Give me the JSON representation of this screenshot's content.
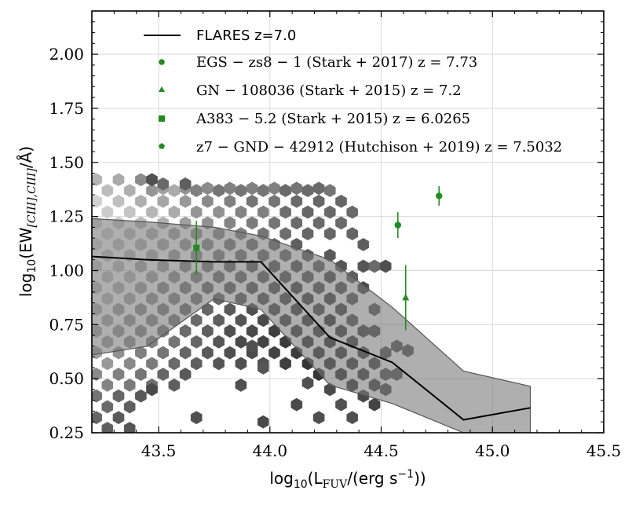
{
  "chart_data": {
    "type": "scatter",
    "title": "",
    "xlabel": "log10(LFUV/(erg s−1))",
    "ylabel": "log10(EW[CIII],CIII]/Å)",
    "xlim": [
      43.2,
      45.5
    ],
    "ylim": [
      0.25,
      2.2
    ],
    "x_ticks": [
      43.5,
      44.0,
      44.5,
      45.0,
      45.5
    ],
    "x_tick_labels": [
      "43.5",
      "44.0",
      "44.5",
      "45.0",
      "45.5"
    ],
    "y_ticks": [
      0.25,
      0.5,
      0.75,
      1.0,
      1.25,
      1.5,
      1.75,
      2.0
    ],
    "y_tick_labels": [
      "0.25",
      "0.50",
      "0.75",
      "1.00",
      "1.25",
      "1.50",
      "1.75",
      "2.00"
    ],
    "grid": true,
    "legend_position": "top-left",
    "colors": {
      "observed": "#228b22",
      "median": "#000000",
      "band_fill": "#7a7a7a",
      "band_edge": "#555555"
    },
    "median_line": {
      "name": "FLARES z=7.0",
      "x": [
        43.2,
        43.45,
        43.75,
        43.96,
        44.27,
        44.55,
        44.87,
        45.17
      ],
      "y": [
        1.065,
        1.05,
        1.04,
        1.04,
        0.69,
        0.575,
        0.31,
        0.365
      ]
    },
    "percentile_band": {
      "x": [
        43.2,
        43.45,
        43.75,
        43.96,
        44.27,
        44.55,
        44.87,
        45.17
      ],
      "upper": [
        1.24,
        1.225,
        1.2,
        1.16,
        1.05,
        0.83,
        0.535,
        0.465
      ],
      "lower": [
        0.61,
        0.65,
        0.87,
        0.82,
        0.47,
        0.385,
        0.25,
        0.25
      ]
    },
    "observations": [
      {
        "label": "EGS − zs8 − 1 (Stark + 2017) z = 7.73",
        "marker": "circle",
        "x": 44.76,
        "y": 1.345,
        "yerr": 0.045
      },
      {
        "label": "",
        "marker": "circle",
        "x": 44.575,
        "y": 1.21,
        "yerr": 0.06
      },
      {
        "label": "GN − 108036 (Stark + 2015) z = 7.2",
        "marker": "triangle",
        "x": 44.61,
        "y": 0.875,
        "yerr": 0.15
      },
      {
        "label": "A383 − 5.2 (Stark + 2015) z = 6.0265",
        "marker": "square",
        "x": 43.67,
        "y": 1.105,
        "yerr": 0.125
      },
      {
        "label": "z7 − GND − 42912 (Hutchison + 2019) z = 7.5032",
        "marker": "pentagon",
        "x": null,
        "y": null,
        "yerr": null
      }
    ],
    "hexbin": [
      [
        43.22,
        1.42,
        0.25
      ],
      [
        43.27,
        1.37,
        0.22
      ],
      [
        43.32,
        1.42,
        0.3
      ],
      [
        43.37,
        1.37,
        0.28
      ],
      [
        43.42,
        1.42,
        0.45
      ],
      [
        43.47,
        1.37,
        0.4
      ],
      [
        43.52,
        1.38,
        0.35
      ],
      [
        43.57,
        1.37,
        0.3
      ],
      [
        43.62,
        1.38,
        0.42
      ],
      [
        43.67,
        1.37,
        0.5
      ],
      [
        43.72,
        1.38,
        0.45
      ],
      [
        43.77,
        1.37,
        0.55
      ],
      [
        43.82,
        1.38,
        0.5
      ],
      [
        43.87,
        1.37,
        0.55
      ],
      [
        43.92,
        1.38,
        0.5
      ],
      [
        43.97,
        1.37,
        0.55
      ],
      [
        44.02,
        1.38,
        0.5
      ],
      [
        44.07,
        1.37,
        0.6
      ],
      [
        44.12,
        1.38,
        0.55
      ],
      [
        44.17,
        1.37,
        0.6
      ],
      [
        44.22,
        1.38,
        0.6
      ],
      [
        44.27,
        1.37,
        0.55
      ],
      [
        43.52,
        1.4,
        0.6
      ],
      [
        43.62,
        1.4,
        0.65
      ],
      [
        43.47,
        1.42,
        0.72
      ],
      [
        43.22,
        1.32,
        0.12
      ],
      [
        43.27,
        1.27,
        0.15
      ],
      [
        43.32,
        1.32,
        0.2
      ],
      [
        43.37,
        1.27,
        0.18
      ],
      [
        43.42,
        1.32,
        0.28
      ],
      [
        43.47,
        1.27,
        0.25
      ],
      [
        43.52,
        1.32,
        0.32
      ],
      [
        43.57,
        1.27,
        0.3
      ],
      [
        43.62,
        1.32,
        0.38
      ],
      [
        43.67,
        1.27,
        0.4
      ],
      [
        43.72,
        1.32,
        0.45
      ],
      [
        43.77,
        1.27,
        0.42
      ],
      [
        43.82,
        1.32,
        0.5
      ],
      [
        43.87,
        1.27,
        0.48
      ],
      [
        43.92,
        1.32,
        0.55
      ],
      [
        43.97,
        1.27,
        0.5
      ],
      [
        44.02,
        1.32,
        0.55
      ],
      [
        44.07,
        1.27,
        0.58
      ],
      [
        44.12,
        1.32,
        0.6
      ],
      [
        44.17,
        1.27,
        0.62
      ],
      [
        44.22,
        1.32,
        0.62
      ],
      [
        44.27,
        1.27,
        0.6
      ],
      [
        44.32,
        1.32,
        0.62
      ],
      [
        44.37,
        1.27,
        0.6
      ],
      [
        43.22,
        1.22,
        0.1
      ],
      [
        43.27,
        1.17,
        0.12
      ],
      [
        43.32,
        1.22,
        0.15
      ],
      [
        43.37,
        1.17,
        0.18
      ],
      [
        43.42,
        1.22,
        0.22
      ],
      [
        43.47,
        1.17,
        0.25
      ],
      [
        43.52,
        1.22,
        0.28
      ],
      [
        43.57,
        1.17,
        0.32
      ],
      [
        43.62,
        1.22,
        0.35
      ],
      [
        43.67,
        1.17,
        0.4
      ],
      [
        43.72,
        1.22,
        0.42
      ],
      [
        43.77,
        1.17,
        0.45
      ],
      [
        43.82,
        1.22,
        0.48
      ],
      [
        43.87,
        1.17,
        0.5
      ],
      [
        43.92,
        1.22,
        0.52
      ],
      [
        43.97,
        1.17,
        0.55
      ],
      [
        44.02,
        1.22,
        0.55
      ],
      [
        44.07,
        1.17,
        0.58
      ],
      [
        44.12,
        1.22,
        0.6
      ],
      [
        44.17,
        1.17,
        0.62
      ],
      [
        44.22,
        1.22,
        0.6
      ],
      [
        44.27,
        1.17,
        0.62
      ],
      [
        44.32,
        1.22,
        0.6
      ],
      [
        44.37,
        1.17,
        0.62
      ],
      [
        44.42,
        1.12,
        0.65
      ],
      [
        44.47,
        1.02,
        0.6
      ],
      [
        43.22,
        1.12,
        0.1
      ],
      [
        43.27,
        1.07,
        0.15
      ],
      [
        43.32,
        1.12,
        0.18
      ],
      [
        43.37,
        1.07,
        0.2
      ],
      [
        43.42,
        1.12,
        0.25
      ],
      [
        43.47,
        1.07,
        0.28
      ],
      [
        43.52,
        1.12,
        0.3
      ],
      [
        43.57,
        1.07,
        0.35
      ],
      [
        43.62,
        1.12,
        0.38
      ],
      [
        43.67,
        1.07,
        0.42
      ],
      [
        43.72,
        1.12,
        0.45
      ],
      [
        43.77,
        1.07,
        0.5
      ],
      [
        43.82,
        1.12,
        0.52
      ],
      [
        43.87,
        1.07,
        0.55
      ],
      [
        43.92,
        1.12,
        0.58
      ],
      [
        43.97,
        1.07,
        0.6
      ],
      [
        44.02,
        1.12,
        0.6
      ],
      [
        44.07,
        1.07,
        0.62
      ],
      [
        44.12,
        1.12,
        0.65
      ],
      [
        44.17,
        1.07,
        0.65
      ],
      [
        44.22,
        1.02,
        0.65
      ],
      [
        44.27,
        1.07,
        0.68
      ],
      [
        44.32,
        1.02,
        0.7
      ],
      [
        44.37,
        0.97,
        0.65
      ],
      [
        44.42,
        1.02,
        0.7
      ],
      [
        43.22,
        1.02,
        0.15
      ],
      [
        43.27,
        0.97,
        0.18
      ],
      [
        43.32,
        1.02,
        0.2
      ],
      [
        43.37,
        0.97,
        0.22
      ],
      [
        43.42,
        1.02,
        0.3
      ],
      [
        43.47,
        0.97,
        0.32
      ],
      [
        43.52,
        1.02,
        0.35
      ],
      [
        43.57,
        0.97,
        0.4
      ],
      [
        43.62,
        1.02,
        0.45
      ],
      [
        43.67,
        0.97,
        0.5
      ],
      [
        43.72,
        1.02,
        0.52
      ],
      [
        43.77,
        0.97,
        0.58
      ],
      [
        43.82,
        1.02,
        0.6
      ],
      [
        43.87,
        0.97,
        0.62
      ],
      [
        43.92,
        1.02,
        0.65
      ],
      [
        43.97,
        0.97,
        0.65
      ],
      [
        44.02,
        1.02,
        0.68
      ],
      [
        44.07,
        0.97,
        0.7
      ],
      [
        44.12,
        1.02,
        0.72
      ],
      [
        44.17,
        0.97,
        0.7
      ],
      [
        44.22,
        0.92,
        0.72
      ],
      [
        44.27,
        0.97,
        0.75
      ],
      [
        44.32,
        0.92,
        0.72
      ],
      [
        44.37,
        0.87,
        0.7
      ],
      [
        44.42,
        0.92,
        0.75
      ],
      [
        43.22,
        0.92,
        0.2
      ],
      [
        43.27,
        0.87,
        0.22
      ],
      [
        43.32,
        0.92,
        0.25
      ],
      [
        43.37,
        0.87,
        0.3
      ],
      [
        43.42,
        0.92,
        0.35
      ],
      [
        43.47,
        0.87,
        0.4
      ],
      [
        43.52,
        0.92,
        0.45
      ],
      [
        43.57,
        0.87,
        0.48
      ],
      [
        43.62,
        0.92,
        0.52
      ],
      [
        43.67,
        0.87,
        0.55
      ],
      [
        43.72,
        0.92,
        0.6
      ],
      [
        43.77,
        0.87,
        0.62
      ],
      [
        43.82,
        0.92,
        0.65
      ],
      [
        43.87,
        0.87,
        0.68
      ],
      [
        43.92,
        0.92,
        0.7
      ],
      [
        43.97,
        0.87,
        0.72
      ],
      [
        44.02,
        0.92,
        0.72
      ],
      [
        44.07,
        0.87,
        0.75
      ],
      [
        44.12,
        0.92,
        0.78
      ],
      [
        44.17,
        0.87,
        0.78
      ],
      [
        44.22,
        0.82,
        0.75
      ],
      [
        44.27,
        0.87,
        0.8
      ],
      [
        44.32,
        0.82,
        0.78
      ],
      [
        44.37,
        0.77,
        0.72
      ],
      [
        44.47,
        0.82,
        0.7
      ],
      [
        43.22,
        0.82,
        0.25
      ],
      [
        43.27,
        0.77,
        0.3
      ],
      [
        43.32,
        0.82,
        0.35
      ],
      [
        43.37,
        0.77,
        0.38
      ],
      [
        43.42,
        0.82,
        0.42
      ],
      [
        43.47,
        0.77,
        0.45
      ],
      [
        43.52,
        0.82,
        0.5
      ],
      [
        43.57,
        0.77,
        0.52
      ],
      [
        43.62,
        0.82,
        0.58
      ],
      [
        43.67,
        0.77,
        0.6
      ],
      [
        43.72,
        0.82,
        0.62
      ],
      [
        43.77,
        0.77,
        0.65
      ],
      [
        43.82,
        0.82,
        0.68
      ],
      [
        43.87,
        0.77,
        0.7
      ],
      [
        43.92,
        0.82,
        0.72
      ],
      [
        43.97,
        0.77,
        0.75
      ],
      [
        44.02,
        0.82,
        0.75
      ],
      [
        44.07,
        0.77,
        0.78
      ],
      [
        44.12,
        0.82,
        0.8
      ],
      [
        44.17,
        0.77,
        0.82
      ],
      [
        44.22,
        0.72,
        0.82
      ],
      [
        44.27,
        0.77,
        0.85
      ],
      [
        44.32,
        0.72,
        0.82
      ],
      [
        44.37,
        0.67,
        0.8
      ],
      [
        44.42,
        0.72,
        0.78
      ],
      [
        44.47,
        0.72,
        0.75
      ],
      [
        44.52,
        0.62,
        0.72
      ],
      [
        43.22,
        0.72,
        0.3
      ],
      [
        43.27,
        0.67,
        0.35
      ],
      [
        43.32,
        0.72,
        0.38
      ],
      [
        43.37,
        0.67,
        0.42
      ],
      [
        43.42,
        0.72,
        0.45
      ],
      [
        43.47,
        0.67,
        0.5
      ],
      [
        43.52,
        0.72,
        0.52
      ],
      [
        43.57,
        0.67,
        0.55
      ],
      [
        43.62,
        0.72,
        0.6
      ],
      [
        43.67,
        0.67,
        0.62
      ],
      [
        43.72,
        0.72,
        0.65
      ],
      [
        43.77,
        0.67,
        0.7
      ],
      [
        43.82,
        0.72,
        0.72
      ],
      [
        43.87,
        0.67,
        0.75
      ],
      [
        43.92,
        0.72,
        0.75
      ],
      [
        43.97,
        0.67,
        0.78
      ],
      [
        44.02,
        0.72,
        0.8
      ],
      [
        44.07,
        0.67,
        0.82
      ],
      [
        44.12,
        0.72,
        0.82
      ],
      [
        44.17,
        0.67,
        0.85
      ],
      [
        44.22,
        0.62,
        0.85
      ],
      [
        44.27,
        0.67,
        0.88
      ],
      [
        44.32,
        0.62,
        0.85
      ],
      [
        44.37,
        0.57,
        0.82
      ],
      [
        44.42,
        0.62,
        0.8
      ],
      [
        44.47,
        0.57,
        0.78
      ],
      [
        44.52,
        0.52,
        0.72
      ],
      [
        43.22,
        0.62,
        0.35
      ],
      [
        43.27,
        0.57,
        0.38
      ],
      [
        43.32,
        0.62,
        0.42
      ],
      [
        43.37,
        0.57,
        0.45
      ],
      [
        43.42,
        0.62,
        0.5
      ],
      [
        43.47,
        0.57,
        0.52
      ],
      [
        43.52,
        0.62,
        0.55
      ],
      [
        43.57,
        0.57,
        0.6
      ],
      [
        43.62,
        0.62,
        0.62
      ],
      [
        43.67,
        0.57,
        0.65
      ],
      [
        43.72,
        0.62,
        0.68
      ],
      [
        43.77,
        0.57,
        0.7
      ],
      [
        43.82,
        0.62,
        0.72
      ],
      [
        43.87,
        0.57,
        0.72
      ],
      [
        43.92,
        0.62,
        0.75
      ],
      [
        43.97,
        0.57,
        0.72
      ],
      [
        44.02,
        0.62,
        0.78
      ],
      [
        44.07,
        0.57,
        0.8
      ],
      [
        44.12,
        0.62,
        0.82
      ],
      [
        44.17,
        0.57,
        0.85
      ],
      [
        44.22,
        0.52,
        0.85
      ],
      [
        44.27,
        0.57,
        0.88
      ],
      [
        44.32,
        0.52,
        0.88
      ],
      [
        44.37,
        0.47,
        0.85
      ],
      [
        44.42,
        0.52,
        0.82
      ],
      [
        44.47,
        0.47,
        0.8
      ],
      [
        43.22,
        0.52,
        0.45
      ],
      [
        43.27,
        0.47,
        0.48
      ],
      [
        43.32,
        0.52,
        0.5
      ],
      [
        43.37,
        0.47,
        0.52
      ],
      [
        43.42,
        0.52,
        0.55
      ],
      [
        43.47,
        0.47,
        0.58
      ],
      [
        43.52,
        0.52,
        0.62
      ],
      [
        43.57,
        0.47,
        0.65
      ],
      [
        43.62,
        0.52,
        0.68
      ],
      [
        43.22,
        0.42,
        0.55
      ],
      [
        43.27,
        0.37,
        0.6
      ],
      [
        43.32,
        0.42,
        0.62
      ],
      [
        43.37,
        0.37,
        0.65
      ],
      [
        43.42,
        0.42,
        0.68
      ],
      [
        43.22,
        0.32,
        0.62
      ],
      [
        43.27,
        0.27,
        0.65
      ],
      [
        43.32,
        0.32,
        0.68
      ],
      [
        43.37,
        0.27,
        0.7
      ],
      [
        43.47,
        0.45,
        0.75
      ],
      [
        43.67,
        0.32,
        0.72
      ],
      [
        43.97,
        0.3,
        0.75
      ],
      [
        43.97,
        0.55,
        0.7
      ],
      [
        43.92,
        0.65,
        0.72
      ],
      [
        43.87,
        0.47,
        0.72
      ],
      [
        44.12,
        0.38,
        0.75
      ],
      [
        44.17,
        0.48,
        0.72
      ],
      [
        44.22,
        0.32,
        0.72
      ],
      [
        44.27,
        0.45,
        0.75
      ],
      [
        44.32,
        0.38,
        0.72
      ],
      [
        44.37,
        0.32,
        0.72
      ],
      [
        44.42,
        0.42,
        0.75
      ],
      [
        44.47,
        0.38,
        0.78
      ],
      [
        44.52,
        0.45,
        0.75
      ],
      [
        44.57,
        0.52,
        0.72
      ],
      [
        44.62,
        0.63,
        0.72
      ],
      [
        44.57,
        0.65,
        0.72
      ],
      [
        44.52,
        1.02,
        0.72
      ]
    ]
  }
}
